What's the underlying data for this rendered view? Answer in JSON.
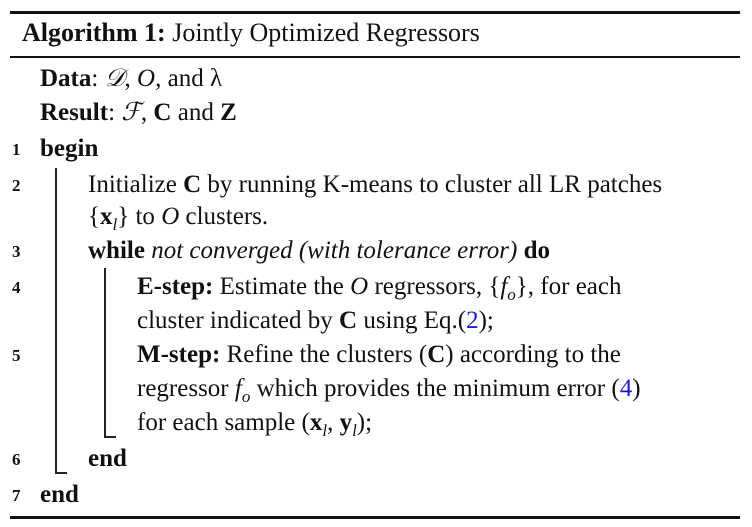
{
  "caption": {
    "label": "Algorithm 1:",
    "title": "Jointly Optimized Regressors"
  },
  "data_line": {
    "key": "Data",
    "sep": ": ",
    "d": "𝒟",
    "comma1": ", ",
    "o": "O",
    "and": ", and ",
    "lambda": "λ"
  },
  "result_line": {
    "key": "Result",
    "sep": ": ",
    "f": "ℱ",
    "comma": ", ",
    "c": "C",
    "and": " and ",
    "z": "Z"
  },
  "line_numbers": [
    "1",
    "2",
    "3",
    "4",
    "5",
    "6",
    "7"
  ],
  "steps": {
    "begin": "begin",
    "init_a": "Initialize ",
    "init_c": "C",
    "init_b": " by running K-means to cluster all LR patches",
    "init2_open": "{",
    "init2_x": "x",
    "init2_sub": "l",
    "init2_close": "}",
    "init2_to": " to ",
    "init2_o": "O",
    "init2_rest": " clusters.",
    "while": "while",
    "while_cond": " not converged (with tolerance error) ",
    "do": "do",
    "estep_label": "E-step:",
    "estep_a": " Estimate the ",
    "estep_o": "O",
    "estep_b": " regressors, {",
    "estep_f": "f",
    "estep_fsub": "o",
    "estep_c": "}, for each",
    "estep2_a": "cluster indicated by ",
    "estep2_c": "C",
    "estep2_b": " using Eq.(",
    "estep2_ref": "2",
    "estep2_close": ");",
    "mstep_label": "M-step:",
    "mstep_a": " Refine the clusters (",
    "mstep_c": "C",
    "mstep_b": ") according to the",
    "mstep2_a": "regressor ",
    "mstep2_f": "f",
    "mstep2_fsub": "o",
    "mstep2_b": " which provides the minimum error (",
    "mstep2_ref": "4",
    "mstep2_close": ")",
    "mstep3_a": "for each sample (",
    "mstep3_x": "x",
    "mstep3_xsub": "l",
    "mstep3_comma": ", ",
    "mstep3_y": "y",
    "mstep3_ysub": "l",
    "mstep3_close": ");",
    "end_inner": "end",
    "end_outer": "end"
  }
}
